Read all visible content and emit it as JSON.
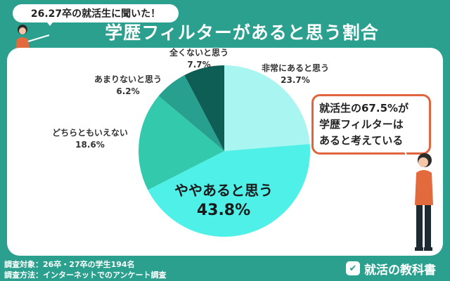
{
  "header": {
    "pill_text": "26.27卒の就活生に聞いた！",
    "title": "学歴フィルターがあると思う割合"
  },
  "callout": {
    "lines": [
      "就活生の67.5%が",
      "学歴フィルターは",
      "あると考えている"
    ]
  },
  "footer": {
    "line1": "調査対象：26卒・27卒の学生194名",
    "line2": "調査方法：インターネットでのアンケート調査",
    "brand": "就活の教科書",
    "brand_icon": "chat-check-icon"
  },
  "colors": {
    "background": "#2ba08f",
    "accent_orange": "#e0653e"
  },
  "chart_data": {
    "type": "pie",
    "start_angle_deg": 0,
    "direction": "clockwise",
    "slices": [
      {
        "label": "非常にあると思う",
        "value": 23.7,
        "display": "23.7%",
        "color": "#a8f5f2"
      },
      {
        "label": "ややあると思う",
        "value": 43.8,
        "display": "43.8%",
        "color": "#4ff0e8"
      },
      {
        "label": "どちらともいえない",
        "value": 18.6,
        "display": "18.6%",
        "color": "#33c9ad"
      },
      {
        "label": "あまりないと思う",
        "value": 6.2,
        "display": "6.2%",
        "color": "#27a08f"
      },
      {
        "label": "全くないと思う",
        "value": 7.7,
        "display": "7.7%",
        "color": "#0f5e55"
      }
    ]
  }
}
